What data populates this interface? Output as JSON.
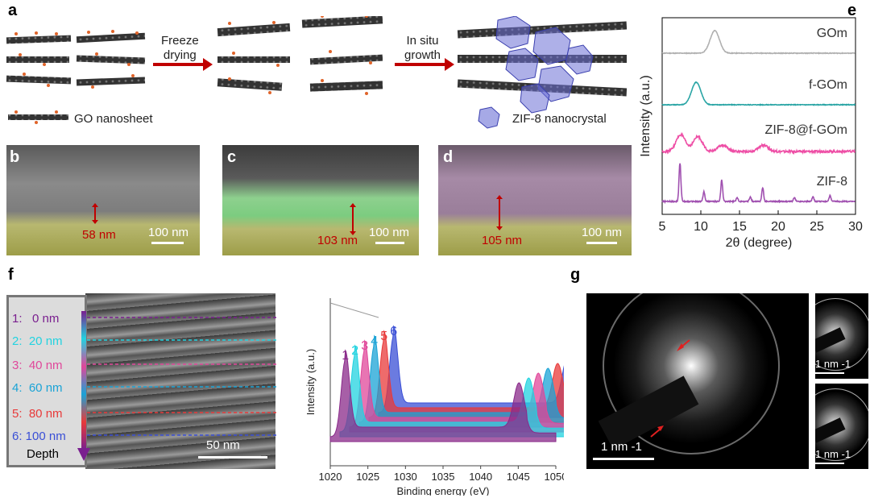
{
  "panels": {
    "a": "a",
    "b": "b",
    "c": "c",
    "d": "d",
    "e": "e",
    "f": "f",
    "g": "g"
  },
  "schematic": {
    "step1": "Freeze\ndrying",
    "step2": "In situ\ngrowth",
    "legend_go": "GO nanosheet",
    "legend_zif": "ZIF-8 nanocrystal"
  },
  "sem": {
    "b": {
      "thickness": "58 nm",
      "scale": "100 nm"
    },
    "c": {
      "thickness": "103 nm",
      "scale": "100 nm"
    },
    "d": {
      "thickness": "105 nm",
      "scale": "100 nm"
    }
  },
  "depth": {
    "title": "Depth",
    "levels": [
      "1:   0 nm",
      "2:  20 nm",
      "3:  40 nm",
      "4:  60 nm",
      "5:  80 nm",
      "6: 100 nm"
    ],
    "colors": [
      "#7a1f8f",
      "#22d3e0",
      "#e0479a",
      "#1aa3d6",
      "#e83a3a",
      "#3a4fd6"
    ],
    "scale": "50 nm"
  },
  "chart_data": [
    {
      "type": "line",
      "panel": "e",
      "xlabel": "2θ  (degree)",
      "ylabel": "Intensity (a.u.)",
      "xlim": [
        5,
        30
      ],
      "xticks": [
        "5",
        "10",
        "15",
        "20",
        "25",
        "30"
      ],
      "series": [
        {
          "name": "GOm",
          "color": "#b0b0b0",
          "peaks": [
            [
              11.8,
              1.0
            ]
          ]
        },
        {
          "name": "f-GOm",
          "color": "#2aa5a5",
          "peaks": [
            [
              9.4,
              1.0
            ]
          ]
        },
        {
          "name": "ZIF-8@f-GOm",
          "color": "#ee4fa6",
          "peaks": [
            [
              7.4,
              0.8
            ],
            [
              9.6,
              0.7
            ],
            [
              12.8,
              0.3
            ],
            [
              18.1,
              0.3
            ]
          ]
        },
        {
          "name": "ZIF-8",
          "color": "#a050b0",
          "peaks": [
            [
              7.3,
              1.0
            ],
            [
              10.4,
              0.25
            ],
            [
              12.7,
              0.55
            ],
            [
              14.7,
              0.1
            ],
            [
              16.4,
              0.12
            ],
            [
              18.0,
              0.35
            ],
            [
              22.1,
              0.1
            ],
            [
              24.5,
              0.12
            ],
            [
              26.7,
              0.15
            ]
          ]
        }
      ]
    },
    {
      "type": "line",
      "panel": "f-xps",
      "xlabel": "Binding energy (eV)",
      "ylabel": "Intensity (a.u.)",
      "xlim": [
        1020,
        1050
      ],
      "xticks": [
        "1020",
        "1025",
        "1030",
        "1035",
        "1040",
        "1045",
        "1050"
      ],
      "series": [
        {
          "name": "1",
          "color": "#8a2a8a",
          "peak1": 1022.0,
          "peak2": 1045.1
        },
        {
          "name": "2",
          "color": "#22d3e0",
          "peak1": 1022.0,
          "peak2": 1045.1
        },
        {
          "name": "3",
          "color": "#e0479a",
          "peak1": 1022.0,
          "peak2": 1045.1
        },
        {
          "name": "4",
          "color": "#1aa3d6",
          "peak1": 1022.0,
          "peak2": 1045.1
        },
        {
          "name": "5",
          "color": "#e83a3a",
          "peak1": 1022.0,
          "peak2": 1045.1
        },
        {
          "name": "6",
          "color": "#3a4fd6",
          "peak1": 1022.0,
          "peak2": 1045.1
        }
      ]
    }
  ],
  "saed": {
    "main_scale": "1 nm -1",
    "inset_scale_top": "1 nm -1",
    "inset_scale_bottom": "1 nm -1"
  }
}
